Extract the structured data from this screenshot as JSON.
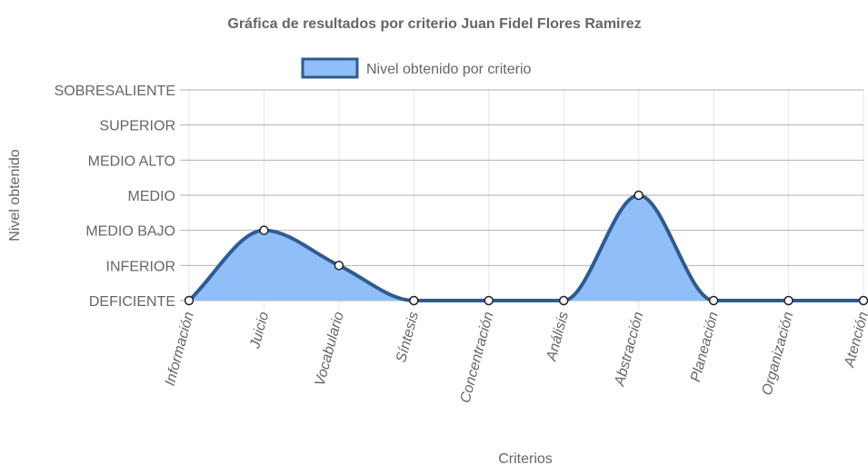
{
  "chart_data": {
    "type": "line",
    "title": "Gráfica de resultados por criterio Juan Fidel Flores Ramirez",
    "xlabel": "Criterios",
    "ylabel": "Nivel obtenido",
    "categories": [
      "Información",
      "Juicio",
      "Vocabulario",
      "Síntesis",
      "Concentración",
      "Análisis",
      "Abstracción",
      "Planeación",
      "Organización",
      "Atención"
    ],
    "y_levels": [
      "DEFICIENTE",
      "INFERIOR",
      "MEDIO BAJO",
      "MEDIO",
      "MEDIO ALTO",
      "SUPERIOR",
      "SOBRESALIENTE"
    ],
    "ylim": [
      0,
      6
    ],
    "series": [
      {
        "name": "Nivel obtenido por criterio",
        "values": [
          0,
          2,
          1,
          0,
          0,
          0,
          3,
          0,
          0,
          0
        ],
        "fill": "#8fbef8",
        "stroke": "#2f5b91"
      }
    ],
    "legend_position": "top",
    "grid": true
  }
}
